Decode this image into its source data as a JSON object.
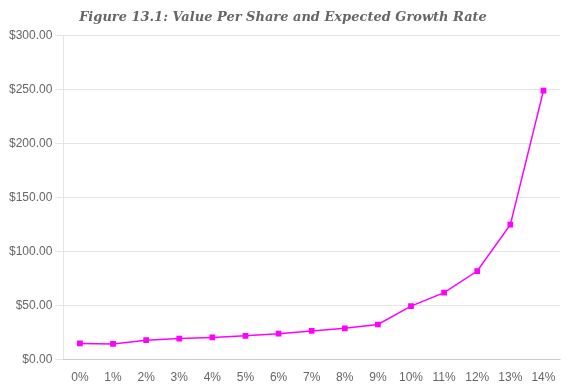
{
  "chart_data": {
    "type": "line",
    "title": "Figure 13.1: Value Per Share and Expected Growth Rate",
    "categories": [
      "0%",
      "1%",
      "2%",
      "3%",
      "4%",
      "5%",
      "6%",
      "7%",
      "8%",
      "9%",
      "10%",
      "11%",
      "12%",
      "13%",
      "14%"
    ],
    "values": [
      15.0,
      14.5,
      18.0,
      19.5,
      20.5,
      22.0,
      24.0,
      26.5,
      29.0,
      32.5,
      49.5,
      62.0,
      82.0,
      125.0,
      249.0
    ],
    "color": "#FF00FF",
    "marker": "square",
    "ylim": [
      0,
      300
    ],
    "yticks": [
      {
        "value": 0,
        "label": "$0.00"
      },
      {
        "value": 50,
        "label": "$50.00"
      },
      {
        "value": 100,
        "label": "$100.00"
      },
      {
        "value": 150,
        "label": "$150.00"
      },
      {
        "value": 200,
        "label": "$200.00"
      },
      {
        "value": 250,
        "label": "$250.00"
      },
      {
        "value": 300,
        "label": "$300.00"
      }
    ],
    "grid": true
  }
}
